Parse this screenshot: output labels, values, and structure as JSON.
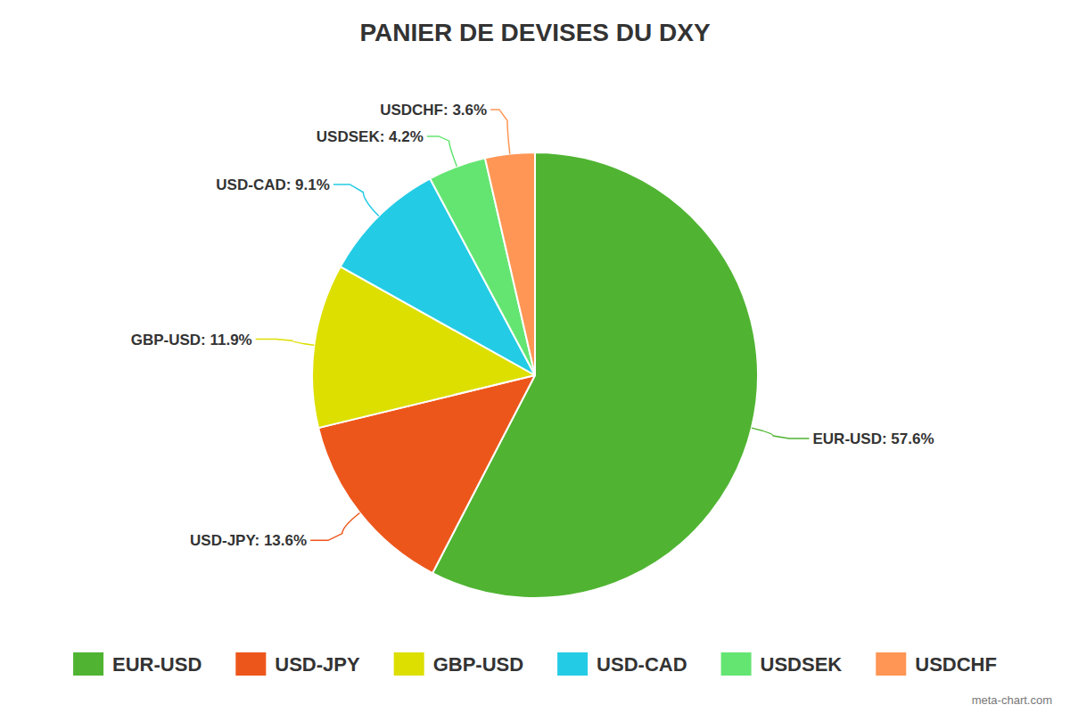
{
  "chart_data": {
    "type": "pie",
    "title": "PANIER DE DEVISES DU DXY",
    "categories": [
      "EUR-USD",
      "USD-JPY",
      "GBP-USD",
      "USD-CAD",
      "USDSEK",
      "USDCHF"
    ],
    "values": [
      57.6,
      13.6,
      11.9,
      9.1,
      4.2,
      3.6
    ],
    "value_labels": [
      "EUR-USD: 57.6%",
      "USD-JPY: 13.6%",
      "GBP-USD: 11.9%",
      "USD-CAD: 9.1%",
      "USDSEK: 4.2%",
      "USDCHF: 3.6%"
    ],
    "colors": [
      "#50b432",
      "#ed561b",
      "#dddf00",
      "#24cbe5",
      "#64e572",
      "#ff9655"
    ],
    "data_labels": true,
    "legend": "bottom",
    "source": "meta-chart.com"
  }
}
